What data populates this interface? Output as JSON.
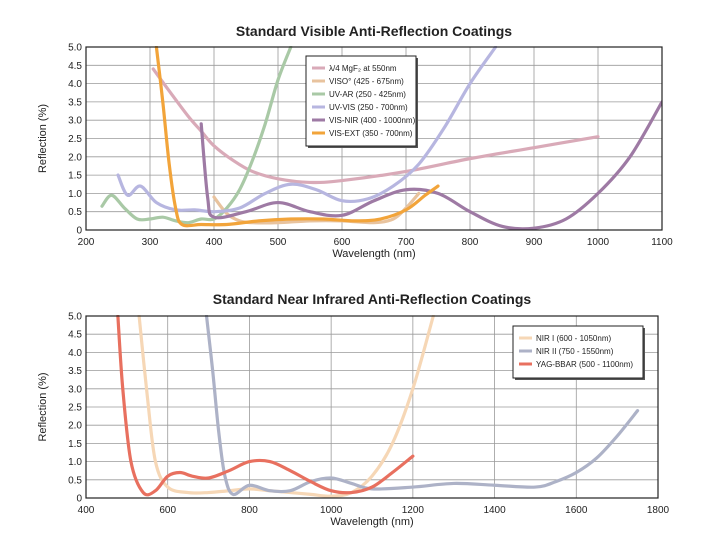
{
  "chart_data": [
    {
      "type": "line",
      "title": "Standard Visible Anti-Reflection Coatings",
      "xlabel": "Wavelength (nm)",
      "ylabel": "Reflection (%)",
      "xlim": [
        200,
        1100
      ],
      "ylim": [
        0,
        5.0
      ],
      "xticks": [
        200,
        300,
        400,
        500,
        600,
        700,
        800,
        900,
        1000,
        1100
      ],
      "yticks": [
        0,
        0.5,
        1.0,
        1.5,
        2.0,
        2.5,
        3.0,
        3.5,
        4.0,
        4.5,
        5.0
      ],
      "ytick_labels": [
        "0",
        "0.5",
        "1.0",
        "1.5",
        "2.0",
        "2.5",
        "3.0",
        "3.5",
        "4.0",
        "4.5",
        "5.0"
      ],
      "grid": true,
      "legend_position": "top-center",
      "series": [
        {
          "name": "λ/4 MgF₂ at 550nm",
          "color": "#d9aab8",
          "x": [
            305,
            330,
            360,
            380,
            400,
            430,
            460,
            500,
            550,
            600,
            700,
            800,
            900,
            1000
          ],
          "y": [
            4.4,
            3.8,
            3.1,
            2.7,
            2.3,
            1.9,
            1.6,
            1.4,
            1.3,
            1.35,
            1.6,
            1.95,
            2.25,
            2.55
          ]
        },
        {
          "name": "VISO° (425 - 675nm)",
          "color": "#e8c39e",
          "x": [
            400,
            420,
            440,
            460,
            500,
            550,
            600,
            650,
            680,
            700,
            720
          ],
          "y": [
            0.9,
            0.45,
            0.25,
            0.2,
            0.2,
            0.25,
            0.25,
            0.2,
            0.3,
            0.6,
            1.0
          ]
        },
        {
          "name": "UV-AR (250 - 425nm)",
          "color": "#a9c9a6",
          "x": [
            225,
            240,
            260,
            280,
            300,
            320,
            340,
            360,
            380,
            400,
            420,
            440,
            460,
            480,
            500,
            520
          ],
          "y": [
            0.65,
            0.95,
            0.6,
            0.3,
            0.3,
            0.35,
            0.25,
            0.2,
            0.3,
            0.3,
            0.6,
            1.1,
            1.9,
            2.9,
            4.1,
            5.0
          ]
        },
        {
          "name": "UV-VIS (250 - 700nm)",
          "color": "#b7b6e0",
          "x": [
            250,
            265,
            285,
            310,
            340,
            370,
            400,
            440,
            480,
            520,
            560,
            600,
            640,
            680,
            720,
            760,
            800,
            840
          ],
          "y": [
            1.5,
            0.95,
            1.2,
            0.75,
            0.55,
            0.55,
            0.5,
            0.6,
            1.0,
            1.25,
            1.1,
            0.8,
            0.85,
            1.2,
            1.8,
            2.8,
            4.0,
            5.0
          ]
        },
        {
          "name": "VIS-NIR (400 - 1000nm)",
          "color": "#9e7aa4",
          "x": [
            380,
            390,
            400,
            450,
            500,
            550,
            600,
            650,
            700,
            750,
            800,
            850,
            900,
            950,
            1000,
            1050,
            1100
          ],
          "y": [
            2.9,
            0.9,
            0.35,
            0.5,
            0.75,
            0.5,
            0.4,
            0.8,
            1.1,
            1.0,
            0.5,
            0.1,
            0.05,
            0.3,
            1.0,
            2.0,
            3.5
          ]
        },
        {
          "name": "VIS-EXT (350 - 700nm)",
          "color": "#f2a43a",
          "x": [
            310,
            320,
            330,
            340,
            350,
            380,
            420,
            470,
            520,
            570,
            620,
            660,
            700,
            730,
            750
          ],
          "y": [
            5.0,
            3.5,
            1.8,
            0.6,
            0.15,
            0.15,
            0.15,
            0.25,
            0.3,
            0.3,
            0.25,
            0.3,
            0.55,
            0.95,
            1.2
          ]
        }
      ]
    },
    {
      "type": "line",
      "title": "Standard Near Infrared Anti-Reflection Coatings",
      "xlabel": "Wavelength (nm)",
      "ylabel": "Reflection (%)",
      "xlim": [
        400,
        1800
      ],
      "ylim": [
        0,
        5.0
      ],
      "xticks": [
        400,
        600,
        800,
        1000,
        1200,
        1400,
        1600,
        1800
      ],
      "yticks": [
        0,
        0.5,
        1.0,
        1.5,
        2.0,
        2.5,
        3.0,
        3.5,
        4.0,
        4.5,
        5.0
      ],
      "ytick_labels": [
        "0",
        "0.5",
        "1.0",
        "1.5",
        "2.0",
        "2.5",
        "3.0",
        "3.5",
        "4.0",
        "4.5",
        "5.0"
      ],
      "grid": true,
      "legend_position": "top-right",
      "series": [
        {
          "name": "NIR I (600 - 1050nm)",
          "color": "#f6d7b6",
          "x": [
            530,
            550,
            570,
            600,
            650,
            700,
            750,
            800,
            850,
            900,
            950,
            1000,
            1050,
            1100,
            1150,
            1200,
            1250
          ],
          "y": [
            5.0,
            2.8,
            1.0,
            0.3,
            0.15,
            0.15,
            0.2,
            0.25,
            0.2,
            0.15,
            0.1,
            0.05,
            0.15,
            0.6,
            1.5,
            3.0,
            5.0
          ]
        },
        {
          "name": "NIR II (750 - 1550nm)",
          "color": "#adb2c7",
          "x": [
            695,
            710,
            725,
            740,
            760,
            800,
            850,
            900,
            950,
            1000,
            1050,
            1100,
            1200,
            1300,
            1400,
            1500,
            1550,
            1600,
            1650,
            1700,
            1750
          ],
          "y": [
            5.0,
            3.5,
            1.8,
            0.6,
            0.1,
            0.35,
            0.2,
            0.2,
            0.45,
            0.55,
            0.4,
            0.25,
            0.3,
            0.4,
            0.35,
            0.3,
            0.45,
            0.7,
            1.1,
            1.7,
            2.4
          ]
        },
        {
          "name": "YAG-BBAR (500 - 1100nm)",
          "color": "#e8705f",
          "x": [
            478,
            490,
            510,
            540,
            570,
            600,
            630,
            660,
            700,
            750,
            800,
            850,
            900,
            950,
            1000,
            1050,
            1100,
            1150,
            1200
          ],
          "y": [
            5.0,
            3.0,
            1.0,
            0.15,
            0.2,
            0.6,
            0.7,
            0.6,
            0.55,
            0.75,
            1.0,
            1.0,
            0.75,
            0.45,
            0.2,
            0.15,
            0.3,
            0.7,
            1.15
          ]
        }
      ]
    }
  ]
}
